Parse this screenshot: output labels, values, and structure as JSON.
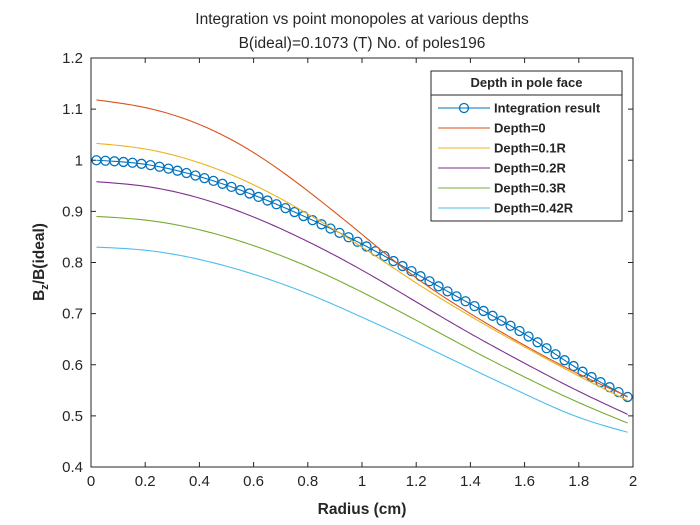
{
  "chart_data": {
    "type": "line",
    "title": "Integration vs point monopoles at various depths",
    "subtitle": "B(ideal)=0.1073 (T) No. of poles196",
    "xlabel": "Radius (cm)",
    "ylabel_main": "B",
    "ylabel_sub": "z",
    "ylabel_rest": "/B(ideal)",
    "xlim": [
      0,
      2
    ],
    "ylim": [
      0.4,
      1.2
    ],
    "xticks": [
      "0",
      "0.2",
      "0.4",
      "0.6",
      "0.8",
      "1",
      "1.2",
      "1.4",
      "1.6",
      "1.8",
      "2"
    ],
    "yticks": [
      "0.4",
      "0.5",
      "0.6",
      "0.7",
      "0.8",
      "0.9",
      "1",
      "1.1",
      "1.2"
    ],
    "grid": false,
    "legend": {
      "title": "Depth in pole face",
      "position": "top-right"
    },
    "x": [
      0.02,
      0.2,
      0.4,
      0.6,
      0.8,
      1.0,
      1.2,
      1.4,
      1.6,
      1.8,
      1.98
    ],
    "series": [
      {
        "name": "Integration result",
        "color": "#0072BD",
        "marker": "circle",
        "values": [
          1.0,
          0.992,
          0.968,
          0.932,
          0.887,
          0.836,
          0.778,
          0.719,
          0.66,
          0.591,
          0.537
        ]
      },
      {
        "name": "Depth=0",
        "color": "#D95319",
        "values": [
          1.118,
          1.103,
          1.07,
          1.015,
          0.94,
          0.855,
          0.77,
          0.7,
          0.638,
          0.582,
          0.538
        ]
      },
      {
        "name": "Depth=0.1R",
        "color": "#EDB120",
        "values": [
          1.033,
          1.022,
          0.995,
          0.952,
          0.895,
          0.83,
          0.76,
          0.695,
          0.635,
          0.578,
          0.53
        ]
      },
      {
        "name": "Depth=0.2R",
        "color": "#7E2F8E",
        "values": [
          0.958,
          0.949,
          0.926,
          0.889,
          0.841,
          0.785,
          0.723,
          0.661,
          0.603,
          0.548,
          0.503
        ]
      },
      {
        "name": "Depth=0.3R",
        "color": "#77AC30",
        "values": [
          0.89,
          0.883,
          0.864,
          0.833,
          0.792,
          0.742,
          0.687,
          0.63,
          0.576,
          0.526,
          0.486
        ]
      },
      {
        "name": "Depth=0.42R",
        "color": "#4DBEEE",
        "values": [
          0.83,
          0.824,
          0.806,
          0.777,
          0.739,
          0.693,
          0.644,
          0.593,
          0.543,
          0.497,
          0.468
        ]
      }
    ]
  }
}
